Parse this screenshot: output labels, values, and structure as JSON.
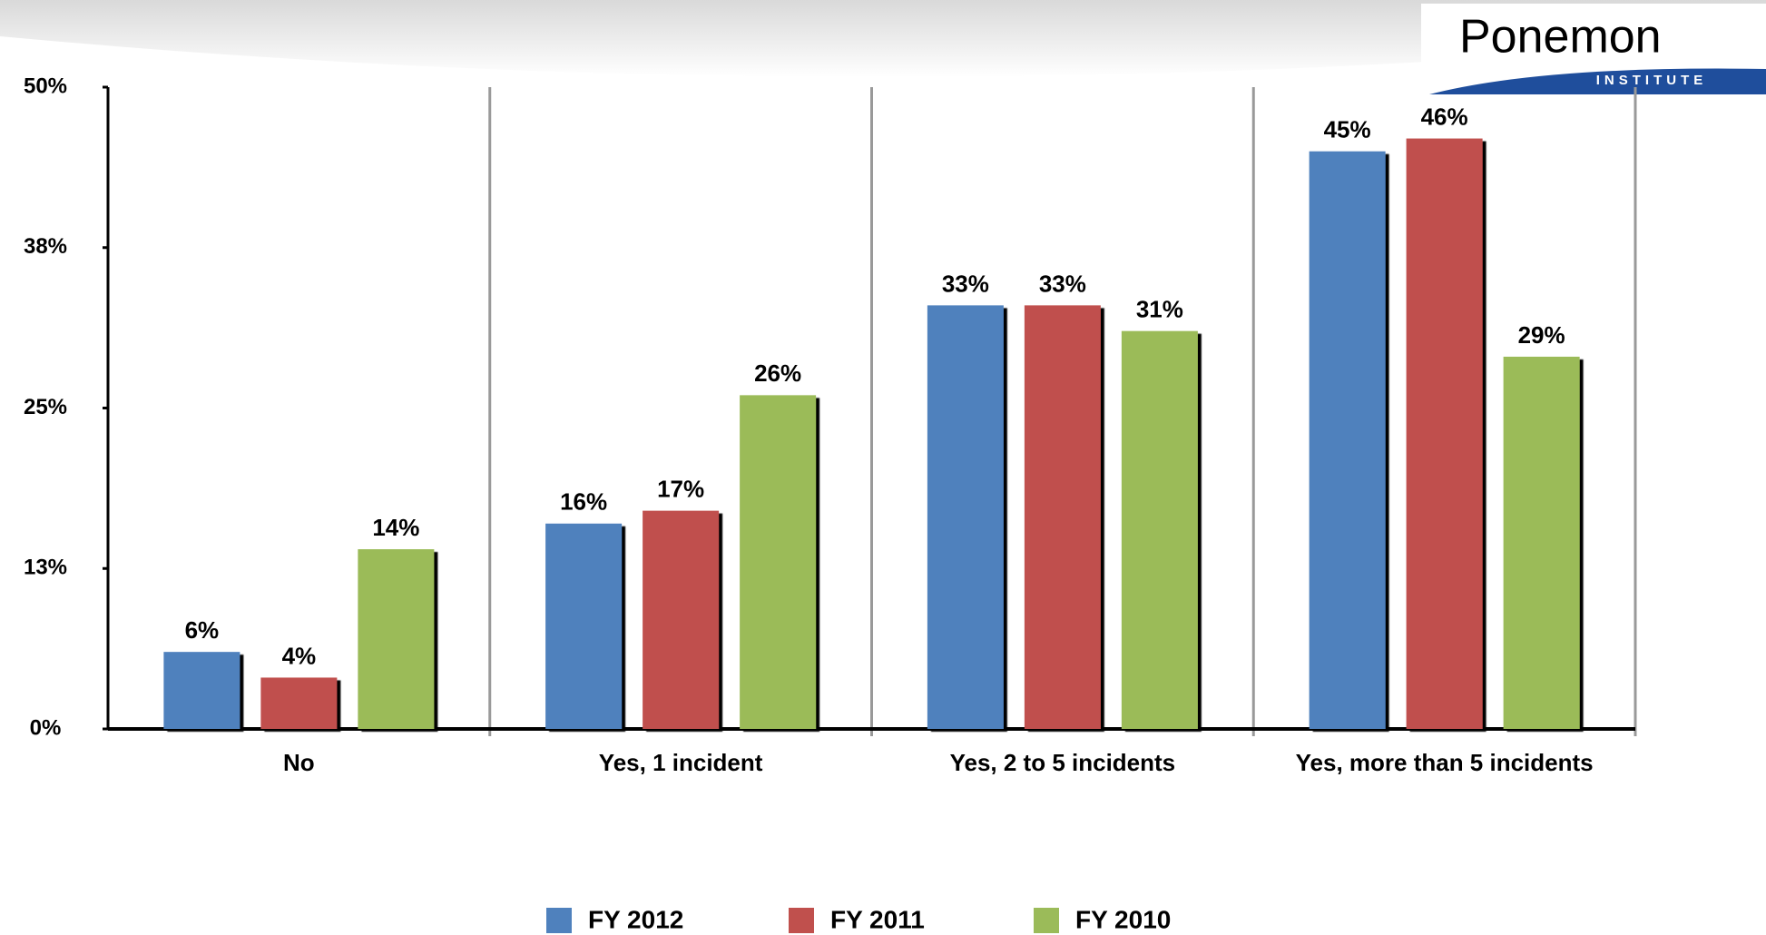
{
  "logo": {
    "name": "Ponemon",
    "subtitle": "INSTITUTE"
  },
  "chart_data": {
    "type": "bar",
    "categories": [
      "No",
      "Yes, 1 incident",
      "Yes, 2 to 5 incidents",
      "Yes, more than 5 incidents"
    ],
    "series": [
      {
        "name": "FY 2012",
        "color": "#4f81bd",
        "values": [
          6,
          16,
          33,
          45
        ],
        "value_labels": [
          "6%",
          "16%",
          "33%",
          "45%"
        ]
      },
      {
        "name": "FY 2011",
        "color": "#c0504d",
        "values": [
          4,
          17,
          33,
          46
        ],
        "value_labels": [
          "4%",
          "17%",
          "33%",
          "46%"
        ]
      },
      {
        "name": "FY 2010",
        "color": "#9bbb59",
        "values": [
          14,
          26,
          31,
          29
        ],
        "value_labels": [
          "14%",
          "26%",
          "31%",
          "29%"
        ]
      }
    ],
    "ylim": [
      0,
      50
    ],
    "yticks": [
      {
        "value": 0,
        "label": "0%"
      },
      {
        "value": 12.5,
        "label": "13%"
      },
      {
        "value": 25,
        "label": "25%"
      },
      {
        "value": 37.5,
        "label": "38%"
      },
      {
        "value": 50,
        "label": "50%"
      }
    ],
    "legend": "bottom"
  }
}
